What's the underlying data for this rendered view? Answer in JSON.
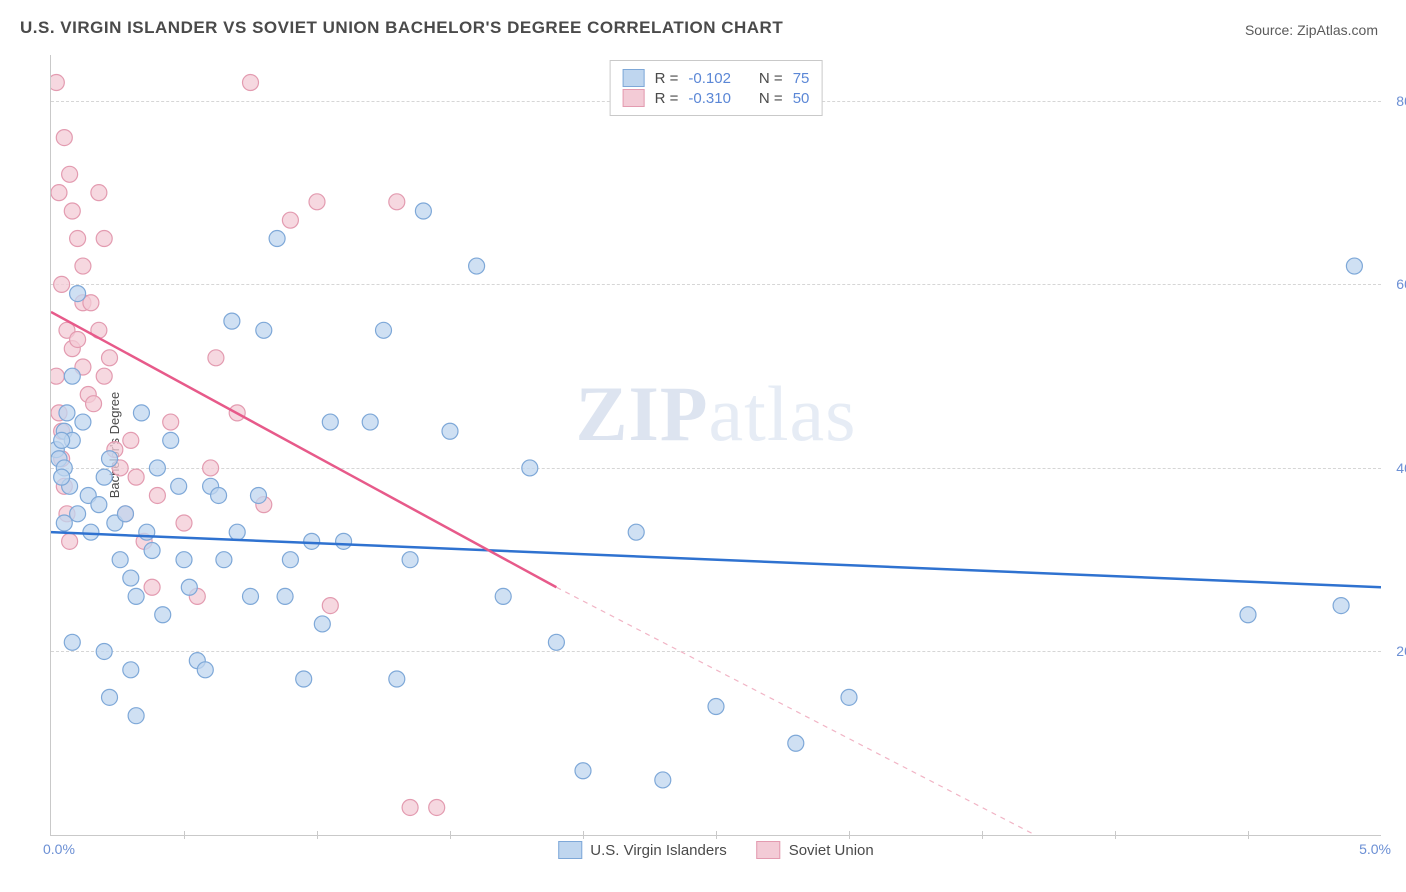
{
  "title": "U.S. VIRGIN ISLANDER VS SOVIET UNION BACHELOR'S DEGREE CORRELATION CHART",
  "source": "Source: ZipAtlas.com",
  "ylabel": "Bachelor's Degree",
  "watermark_bold": "ZIP",
  "watermark_light": "atlas",
  "chart": {
    "type": "scatter",
    "xlim": [
      0,
      5
    ],
    "ylim": [
      0,
      85
    ],
    "xticks": [
      0,
      5
    ],
    "xticklabels": [
      "0.0%",
      "5.0%"
    ],
    "yticks": [
      20,
      40,
      60,
      80
    ],
    "yticklabels": [
      "20.0%",
      "40.0%",
      "60.0%",
      "80.0%"
    ],
    "grid_minor_x_positions": [
      0.5,
      1.0,
      1.5,
      2.0,
      2.5,
      3.0,
      3.5,
      4.0,
      4.5
    ],
    "grid_color": "#d6d6d6",
    "marker_radius": 8,
    "background_color": "#ffffff",
    "series": [
      {
        "name": "U.S. Virgin Islanders",
        "fill": "#bfd6ef",
        "stroke": "#7ea8d8",
        "R_label": "R = ",
        "R_value": "-0.102",
        "N_label": "N = ",
        "N_value": "75",
        "trend": {
          "x1": 0,
          "y1": 33,
          "x2": 5,
          "y2": 27,
          "color": "#2f72d0",
          "width": 2.5,
          "dash": ""
        },
        "points": [
          [
            0.02,
            42
          ],
          [
            0.03,
            41
          ],
          [
            0.05,
            44
          ],
          [
            0.05,
            40
          ],
          [
            0.07,
            38
          ],
          [
            0.08,
            43
          ],
          [
            0.1,
            35
          ],
          [
            0.12,
            45
          ],
          [
            0.14,
            37
          ],
          [
            0.05,
            34
          ],
          [
            0.15,
            33
          ],
          [
            0.18,
            36
          ],
          [
            0.2,
            39
          ],
          [
            0.22,
            41
          ],
          [
            0.24,
            34
          ],
          [
            0.26,
            30
          ],
          [
            0.28,
            35
          ],
          [
            0.08,
            21
          ],
          [
            0.3,
            28
          ],
          [
            0.32,
            26
          ],
          [
            0.34,
            46
          ],
          [
            0.36,
            33
          ],
          [
            0.38,
            31
          ],
          [
            0.4,
            40
          ],
          [
            0.42,
            24
          ],
          [
            0.2,
            20
          ],
          [
            0.45,
            43
          ],
          [
            0.48,
            38
          ],
          [
            0.5,
            30
          ],
          [
            0.52,
            27
          ],
          [
            0.22,
            15
          ],
          [
            0.55,
            19
          ],
          [
            0.58,
            18
          ],
          [
            0.6,
            38
          ],
          [
            0.63,
            37
          ],
          [
            0.65,
            30
          ],
          [
            0.68,
            56
          ],
          [
            0.7,
            33
          ],
          [
            0.3,
            18
          ],
          [
            0.75,
            26
          ],
          [
            0.78,
            37
          ],
          [
            0.8,
            55
          ],
          [
            0.85,
            65
          ],
          [
            0.88,
            26
          ],
          [
            0.9,
            30
          ],
          [
            0.32,
            13
          ],
          [
            0.95,
            17
          ],
          [
            0.98,
            32
          ],
          [
            1.02,
            23
          ],
          [
            1.05,
            45
          ],
          [
            1.1,
            32
          ],
          [
            1.2,
            45
          ],
          [
            1.25,
            55
          ],
          [
            1.3,
            17
          ],
          [
            1.35,
            30
          ],
          [
            1.4,
            68
          ],
          [
            1.5,
            44
          ],
          [
            1.6,
            62
          ],
          [
            1.7,
            26
          ],
          [
            1.8,
            40
          ],
          [
            1.9,
            21
          ],
          [
            2.0,
            7
          ],
          [
            2.2,
            33
          ],
          [
            2.3,
            6
          ],
          [
            2.5,
            14
          ],
          [
            2.8,
            10
          ],
          [
            3.0,
            15
          ],
          [
            4.5,
            24
          ],
          [
            4.85,
            25
          ],
          [
            4.9,
            62
          ],
          [
            0.1,
            59
          ],
          [
            0.08,
            50
          ],
          [
            0.06,
            46
          ],
          [
            0.04,
            43
          ],
          [
            0.04,
            39
          ]
        ]
      },
      {
        "name": "Soviet Union",
        "fill": "#f3cbd6",
        "stroke": "#e39bb0",
        "R_label": "R = ",
        "R_value": "-0.310",
        "N_label": "N = ",
        "N_value": "50",
        "trend_solid": {
          "x1": 0,
          "y1": 57,
          "x2": 1.9,
          "y2": 27,
          "color": "#e75a8a",
          "width": 2.5
        },
        "trend_dash": {
          "x1": 1.9,
          "y1": 27,
          "x2": 3.7,
          "y2": 0,
          "color": "#f1b4c5",
          "width": 1.2,
          "dash": "5,5"
        },
        "points": [
          [
            0.02,
            82
          ],
          [
            0.05,
            76
          ],
          [
            0.07,
            72
          ],
          [
            0.03,
            70
          ],
          [
            0.08,
            68
          ],
          [
            0.1,
            65
          ],
          [
            0.12,
            62
          ],
          [
            0.12,
            58
          ],
          [
            0.04,
            60
          ],
          [
            0.06,
            55
          ],
          [
            0.08,
            53
          ],
          [
            0.1,
            54
          ],
          [
            0.12,
            51
          ],
          [
            0.14,
            48
          ],
          [
            0.16,
            47
          ],
          [
            0.18,
            70
          ],
          [
            0.2,
            65
          ],
          [
            0.22,
            52
          ],
          [
            0.24,
            42
          ],
          [
            0.26,
            40
          ],
          [
            0.28,
            35
          ],
          [
            0.3,
            43
          ],
          [
            0.32,
            39
          ],
          [
            0.35,
            32
          ],
          [
            0.38,
            27
          ],
          [
            0.4,
            37
          ],
          [
            0.45,
            45
          ],
          [
            0.5,
            34
          ],
          [
            0.55,
            26
          ],
          [
            0.6,
            40
          ],
          [
            0.62,
            52
          ],
          [
            0.7,
            46
          ],
          [
            0.75,
            82
          ],
          [
            0.8,
            36
          ],
          [
            0.9,
            67
          ],
          [
            1.0,
            69
          ],
          [
            1.05,
            25
          ],
          [
            1.3,
            69
          ],
          [
            1.35,
            3
          ],
          [
            1.45,
            3
          ],
          [
            0.02,
            50
          ],
          [
            0.03,
            46
          ],
          [
            0.04,
            44
          ],
          [
            0.04,
            41
          ],
          [
            0.05,
            38
          ],
          [
            0.06,
            35
          ],
          [
            0.07,
            32
          ],
          [
            0.15,
            58
          ],
          [
            0.18,
            55
          ],
          [
            0.2,
            50
          ]
        ]
      }
    ]
  }
}
